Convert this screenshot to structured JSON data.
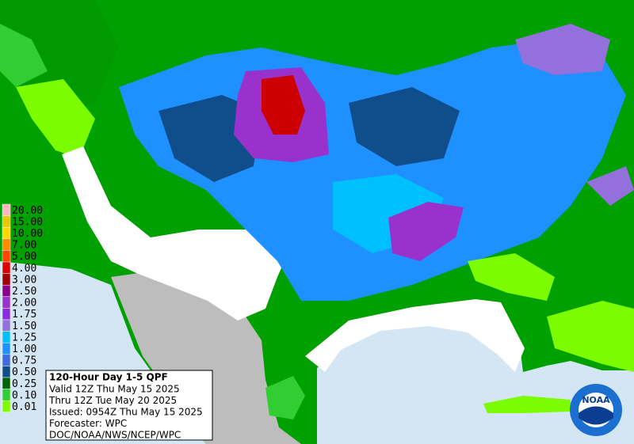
{
  "legend": {
    "items": [
      {
        "label": "20.00",
        "color": "#ffb6c1"
      },
      {
        "label": "15.00",
        "color": "#e6c800"
      },
      {
        "label": "10.00",
        "color": "#ffd700"
      },
      {
        "label": "7.00",
        "color": "#ff8c00"
      },
      {
        "label": "5.00",
        "color": "#ff4500"
      },
      {
        "label": "4.00",
        "color": "#dd0000"
      },
      {
        "label": "3.00",
        "color": "#a00000"
      },
      {
        "label": "2.50",
        "color": "#8b008b"
      },
      {
        "label": "2.00",
        "color": "#9932cc"
      },
      {
        "label": "1.75",
        "color": "#8a2be2"
      },
      {
        "label": "1.50",
        "color": "#9370db"
      },
      {
        "label": "1.25",
        "color": "#00bfff"
      },
      {
        "label": "1.00",
        "color": "#1e90ff"
      },
      {
        "label": "0.75",
        "color": "#4169e1"
      },
      {
        "label": "0.50",
        "color": "#104e8b"
      },
      {
        "label": "0.25",
        "color": "#006400"
      },
      {
        "label": "0.10",
        "color": "#32cd32"
      },
      {
        "label": "0.01",
        "color": "#7cfc00"
      }
    ]
  },
  "info_box": {
    "title": "120-Hour Day 1-5 QPF",
    "lines": [
      "Valid 12Z Thu May 15 2025",
      "Thru 12Z Tue May 20 2025",
      "Issued: 0954Z Thu May 15 2025",
      "Forecaster: WPC",
      "DOC/NOAA/NWS/NCEP/WPC"
    ]
  },
  "logo": {
    "text": "NOAA"
  }
}
